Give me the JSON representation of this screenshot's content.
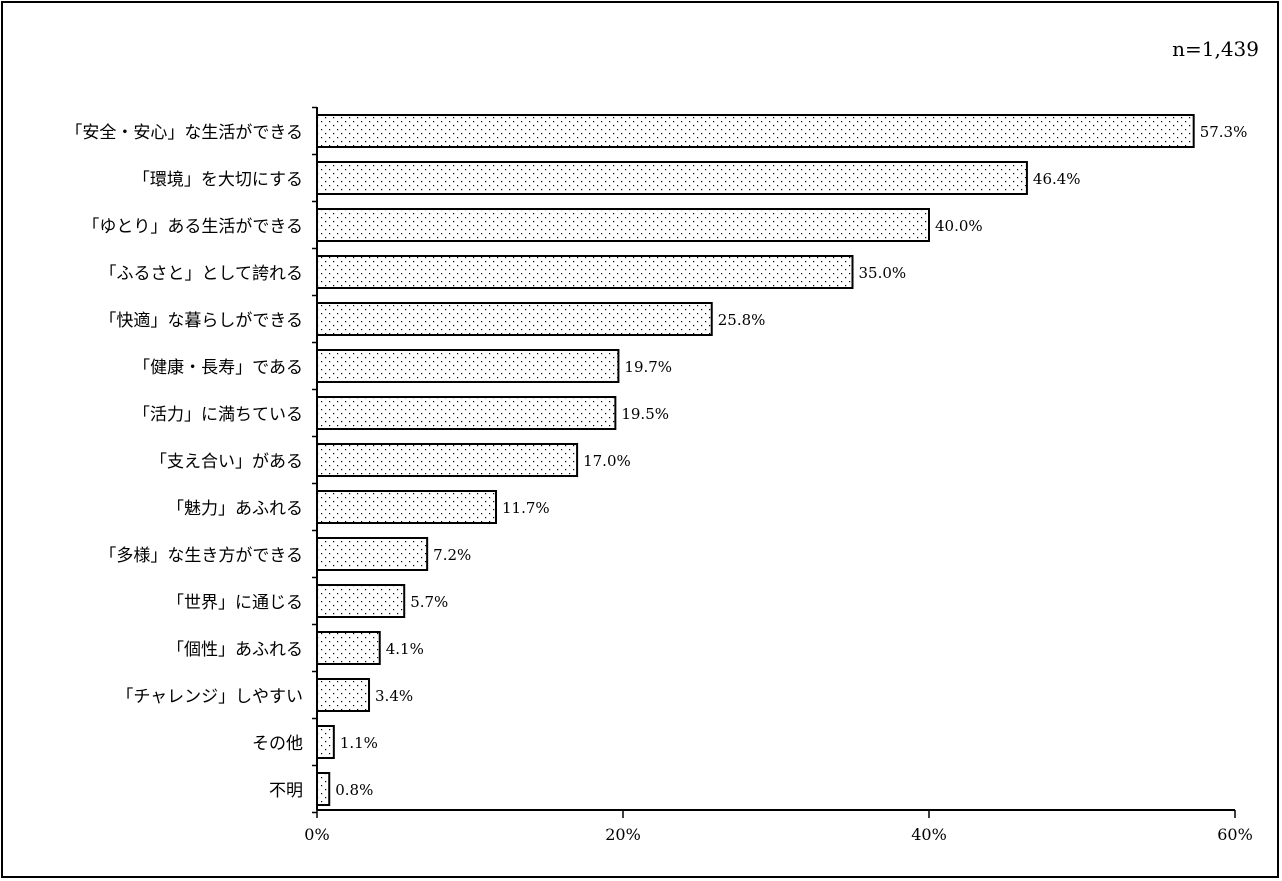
{
  "chart_data": {
    "type": "bar",
    "orientation": "horizontal",
    "sample_note": "n=1,439",
    "categories": [
      "「安全・安心」な生活ができる",
      "「環境」を大切にする",
      "「ゆとり」ある生活ができる",
      "「ふるさと」として誇れる",
      "「快適」な暮らしができる",
      "「健康・長寿」である",
      "「活力」に満ちている",
      "「支え合い」がある",
      "「魅力」あふれる",
      "「多様」な生き方ができる",
      "「世界」に通じる",
      "「個性」あふれる",
      "「チャレンジ」しやすい",
      "その他",
      "不明"
    ],
    "values": [
      57.3,
      46.4,
      40.0,
      35.0,
      25.8,
      19.7,
      19.5,
      17.0,
      11.7,
      7.2,
      5.7,
      4.1,
      3.4,
      1.1,
      0.8
    ],
    "value_labels": [
      "57.3%",
      "46.4%",
      "40.0%",
      "35.0%",
      "25.8%",
      "19.7%",
      "19.5%",
      "17.0%",
      "11.7%",
      "7.2%",
      "5.7%",
      "4.1%",
      "3.4%",
      "1.1%",
      "0.8%"
    ],
    "xlim": [
      0,
      60
    ],
    "xticks": [
      0,
      20,
      40,
      60
    ],
    "xtick_labels": [
      "0%",
      "20%",
      "40%",
      "60%"
    ],
    "bar_fill": "dotted",
    "grid": false,
    "legend": "none"
  }
}
